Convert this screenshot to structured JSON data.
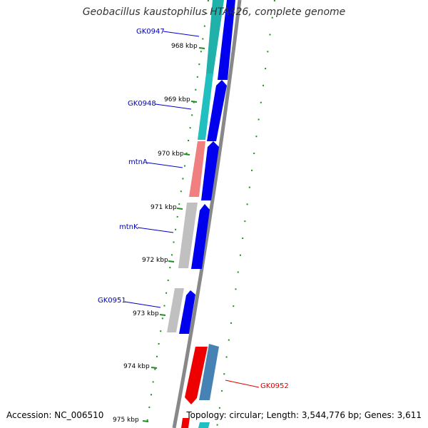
{
  "title": "Geobacillus kaustophilus HTA426, complete genome",
  "accession": "Accession: NC_006510",
  "topology": "Topology: circular; Length: 3,544,776 bp; Genes: 3,611",
  "kbp_labels": [
    "968 kbp",
    "969 kbp",
    "970 kbp",
    "971 kbp",
    "972 kbp",
    "973 kbp",
    "974 kbp",
    "975 kbp"
  ],
  "genes": [
    {
      "name": "GK0947",
      "color": "#0000aa",
      "track_color": "#22bbbb"
    },
    {
      "name": "GK0948",
      "color": "#0000aa",
      "track_color": "#22bbbb"
    },
    {
      "name": "mtnA",
      "color": "#0000aa",
      "track_color": "#e88888"
    },
    {
      "name": "mtnK",
      "color": "#0000aa",
      "track_color": "#bbbbbb"
    },
    {
      "name": "GK0951",
      "color": "#0000aa",
      "track_color": "#bbbbbb"
    },
    {
      "name": "GK0952",
      "color": "#dd0000",
      "track_color": "#4477aa"
    }
  ],
  "colors": {
    "blue_strand": "#0000ee",
    "red_strand": "#ee0000",
    "steel_strand": "#4682b4",
    "backbone": "#888888",
    "tick": "#228b22"
  }
}
